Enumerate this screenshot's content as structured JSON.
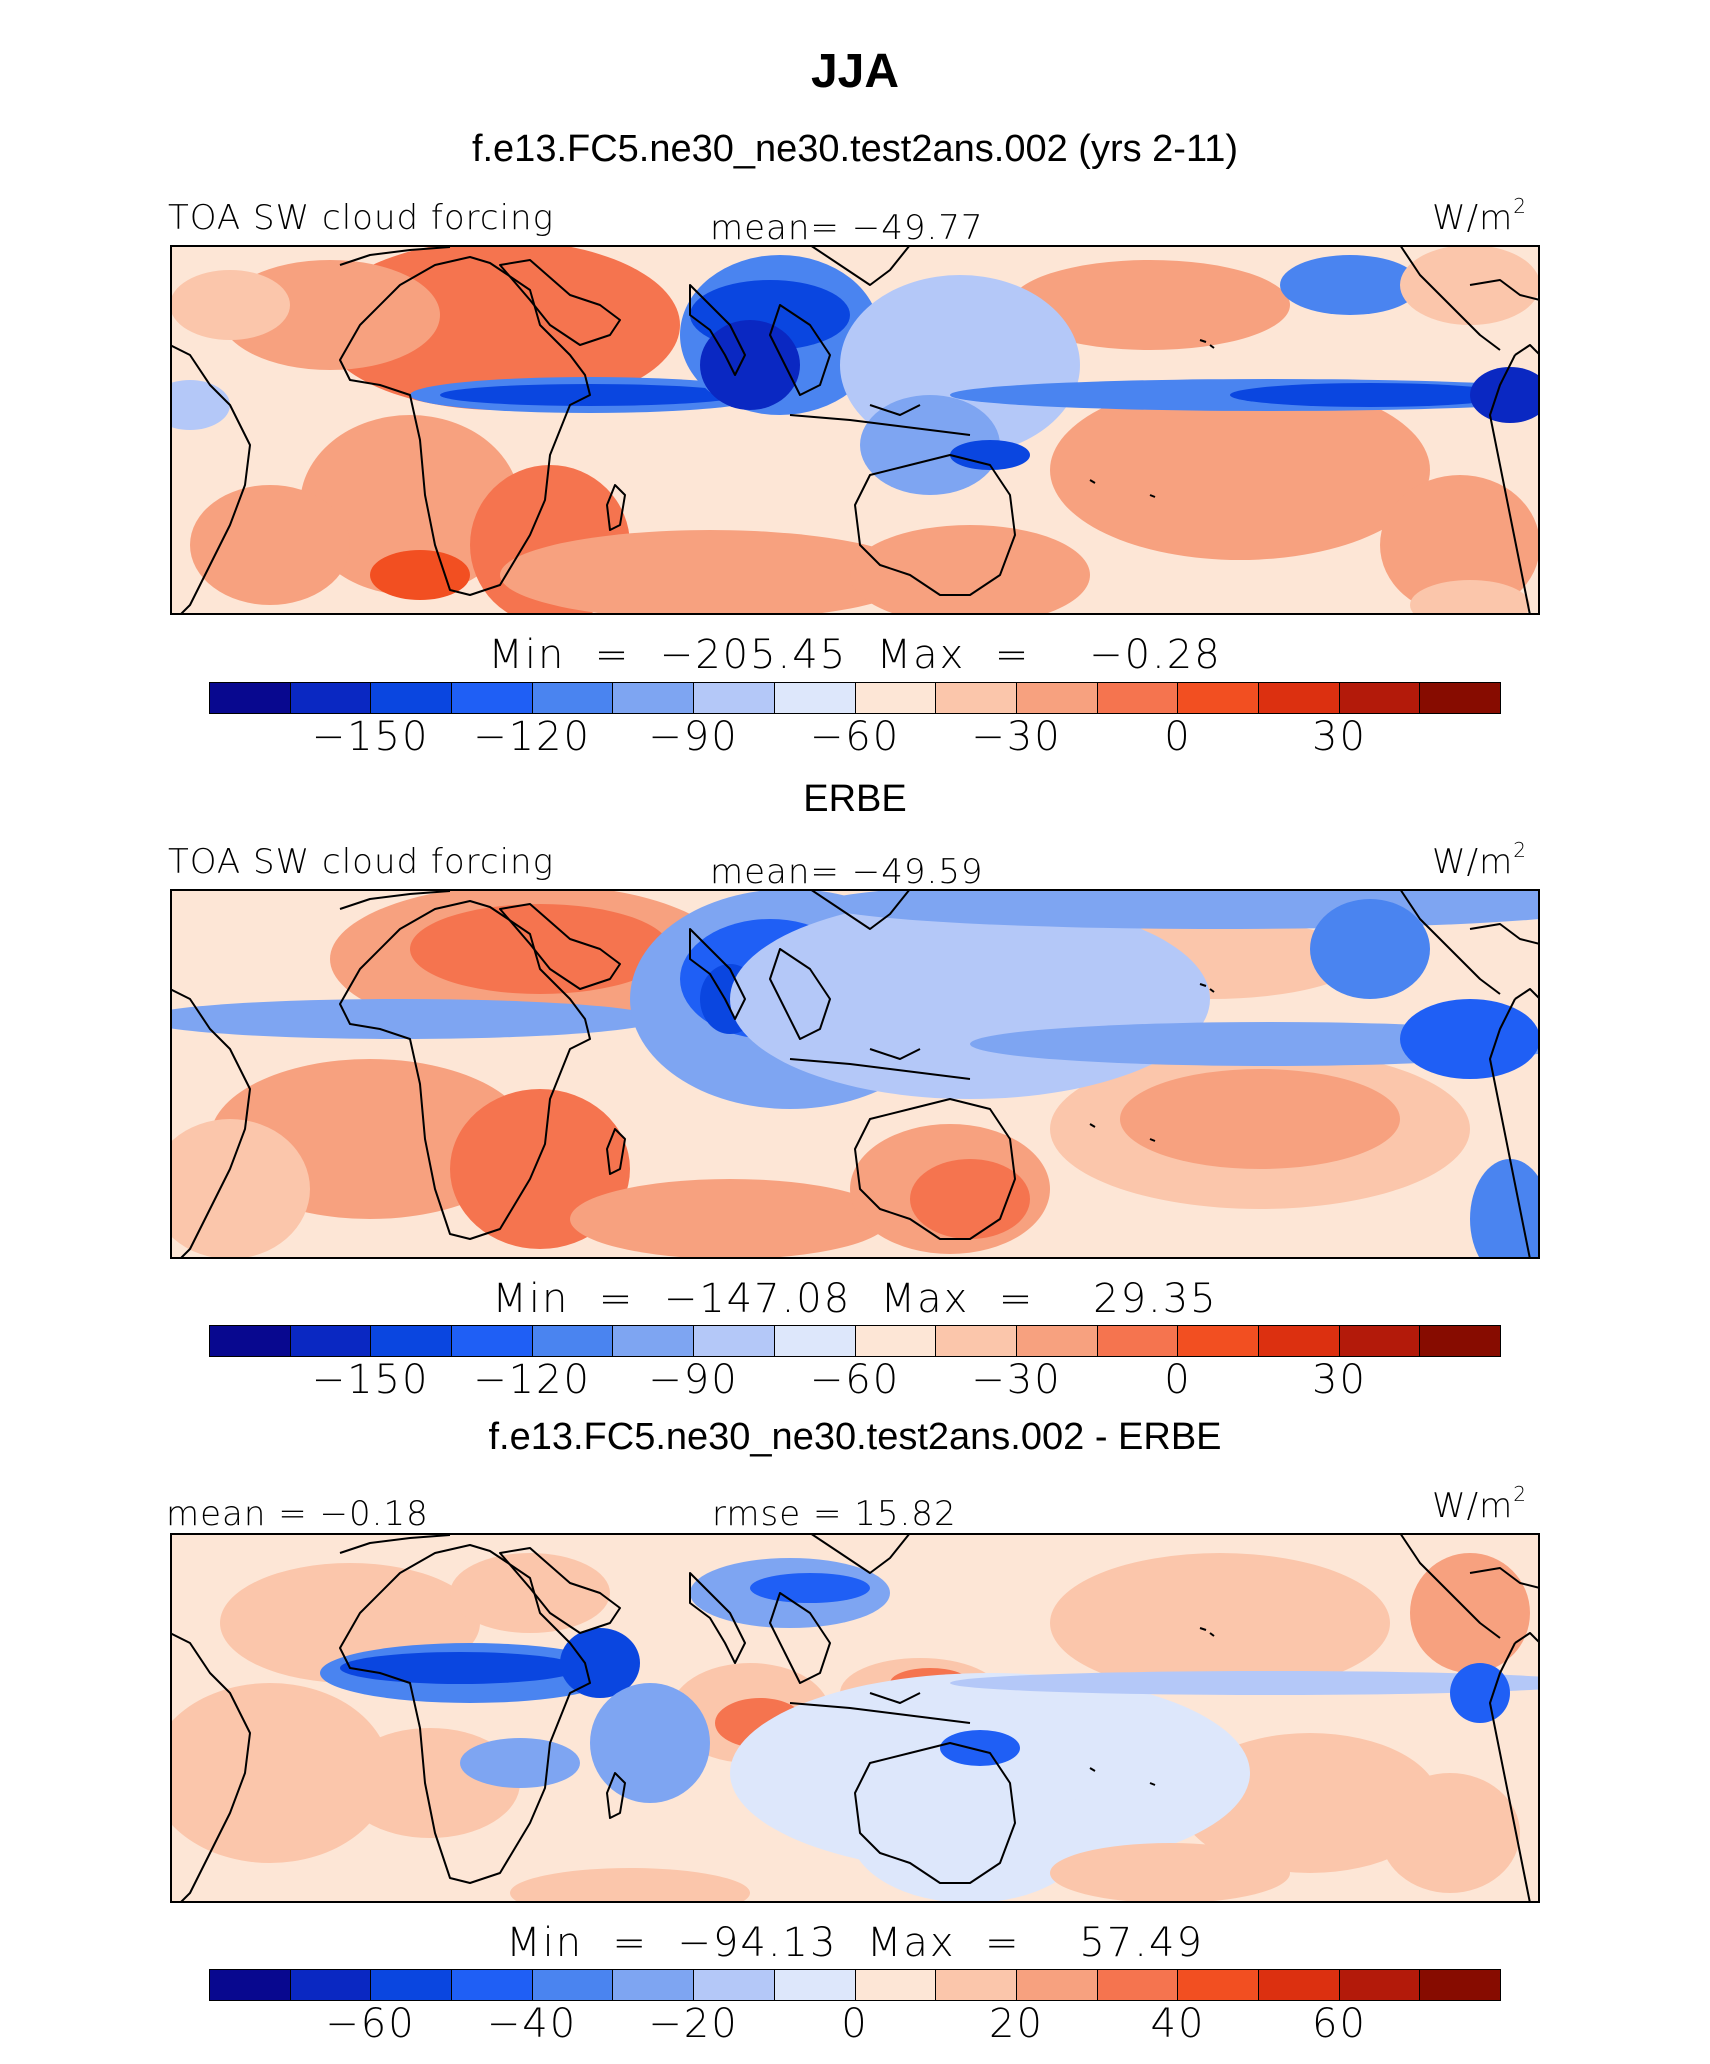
{
  "title": "JJA",
  "colors": [
    "#08088f",
    "#0a28c2",
    "#0a46e0",
    "#1f5ff5",
    "#4a84f0",
    "#7ea5f2",
    "#b4c8f8",
    "#dde7fb",
    "#fde6d6",
    "#fbc6ab",
    "#f7a17f",
    "#f5744f",
    "#f24f21",
    "#dc3010",
    "#b31a0a",
    "#870c00"
  ],
  "panels": [
    {
      "heading": "f.e13.FC5.ne30_ne30.test2ans.002 (yrs 2-11)",
      "left_label": "TOA SW cloud forcing",
      "center_label": "mean= −49.77",
      "units": "W/m",
      "units_exp": "2",
      "minmax": "Min  =  −205.45  Max  =    −0.28",
      "ticks": [
        "−150",
        "−120",
        "−90",
        "−60",
        "−30",
        "0",
        "30"
      ],
      "field": "model"
    },
    {
      "heading": "ERBE",
      "left_label": "TOA SW cloud forcing",
      "center_label": "mean= −49.59",
      "units": "W/m",
      "units_exp": "2",
      "minmax": "Min  =  −147.08  Max  =    29.35",
      "ticks": [
        "−150",
        "−120",
        "−90",
        "−60",
        "−30",
        "0",
        "30"
      ],
      "field": "obs"
    },
    {
      "heading": "f.e13.FC5.ne30_ne30.test2ans.002 - ERBE",
      "left_label": "mean =   −0.18",
      "center_label": "rmse =   15.82",
      "units": "W/m",
      "units_exp": "2",
      "minmax": "Min  =  −94.13  Max  =    57.49",
      "ticks": [
        "−60",
        "−40",
        "−20",
        "0",
        "20",
        "40",
        "60"
      ],
      "field": "diff"
    }
  ]
}
